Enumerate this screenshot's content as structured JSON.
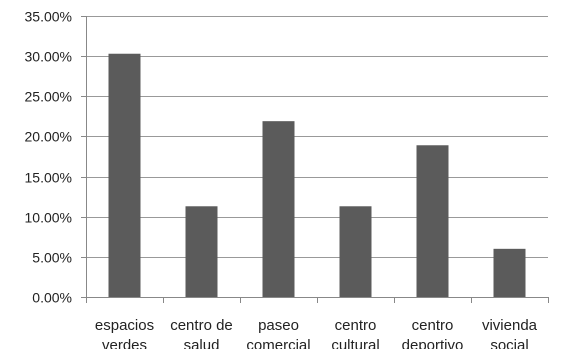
{
  "chart_data": {
    "type": "bar",
    "title": "",
    "xlabel": "",
    "ylabel": "",
    "categories": [
      [
        "espacios",
        "verdes"
      ],
      [
        "centro de",
        "salud"
      ],
      [
        "paseo",
        "comercial"
      ],
      [
        "centro",
        "cultural"
      ],
      [
        "centro",
        "deportivo"
      ],
      [
        "vivienda",
        "social"
      ]
    ],
    "values": [
      30.3,
      11.3,
      21.9,
      11.3,
      18.9,
      6.0
    ],
    "ylim": [
      0,
      35
    ],
    "yticks": [
      0,
      5,
      10,
      15,
      20,
      25,
      30,
      35
    ],
    "ytick_labels": [
      "0.00%",
      "5.00%",
      "10.00%",
      "15.00%",
      "20.00%",
      "25.00%",
      "30.00%",
      "35.00%"
    ],
    "grid": true,
    "legend": "none",
    "colors": {
      "bar": "#5b5b5b",
      "grid": "#999999",
      "axis": "#888888",
      "text": "#222222"
    }
  }
}
